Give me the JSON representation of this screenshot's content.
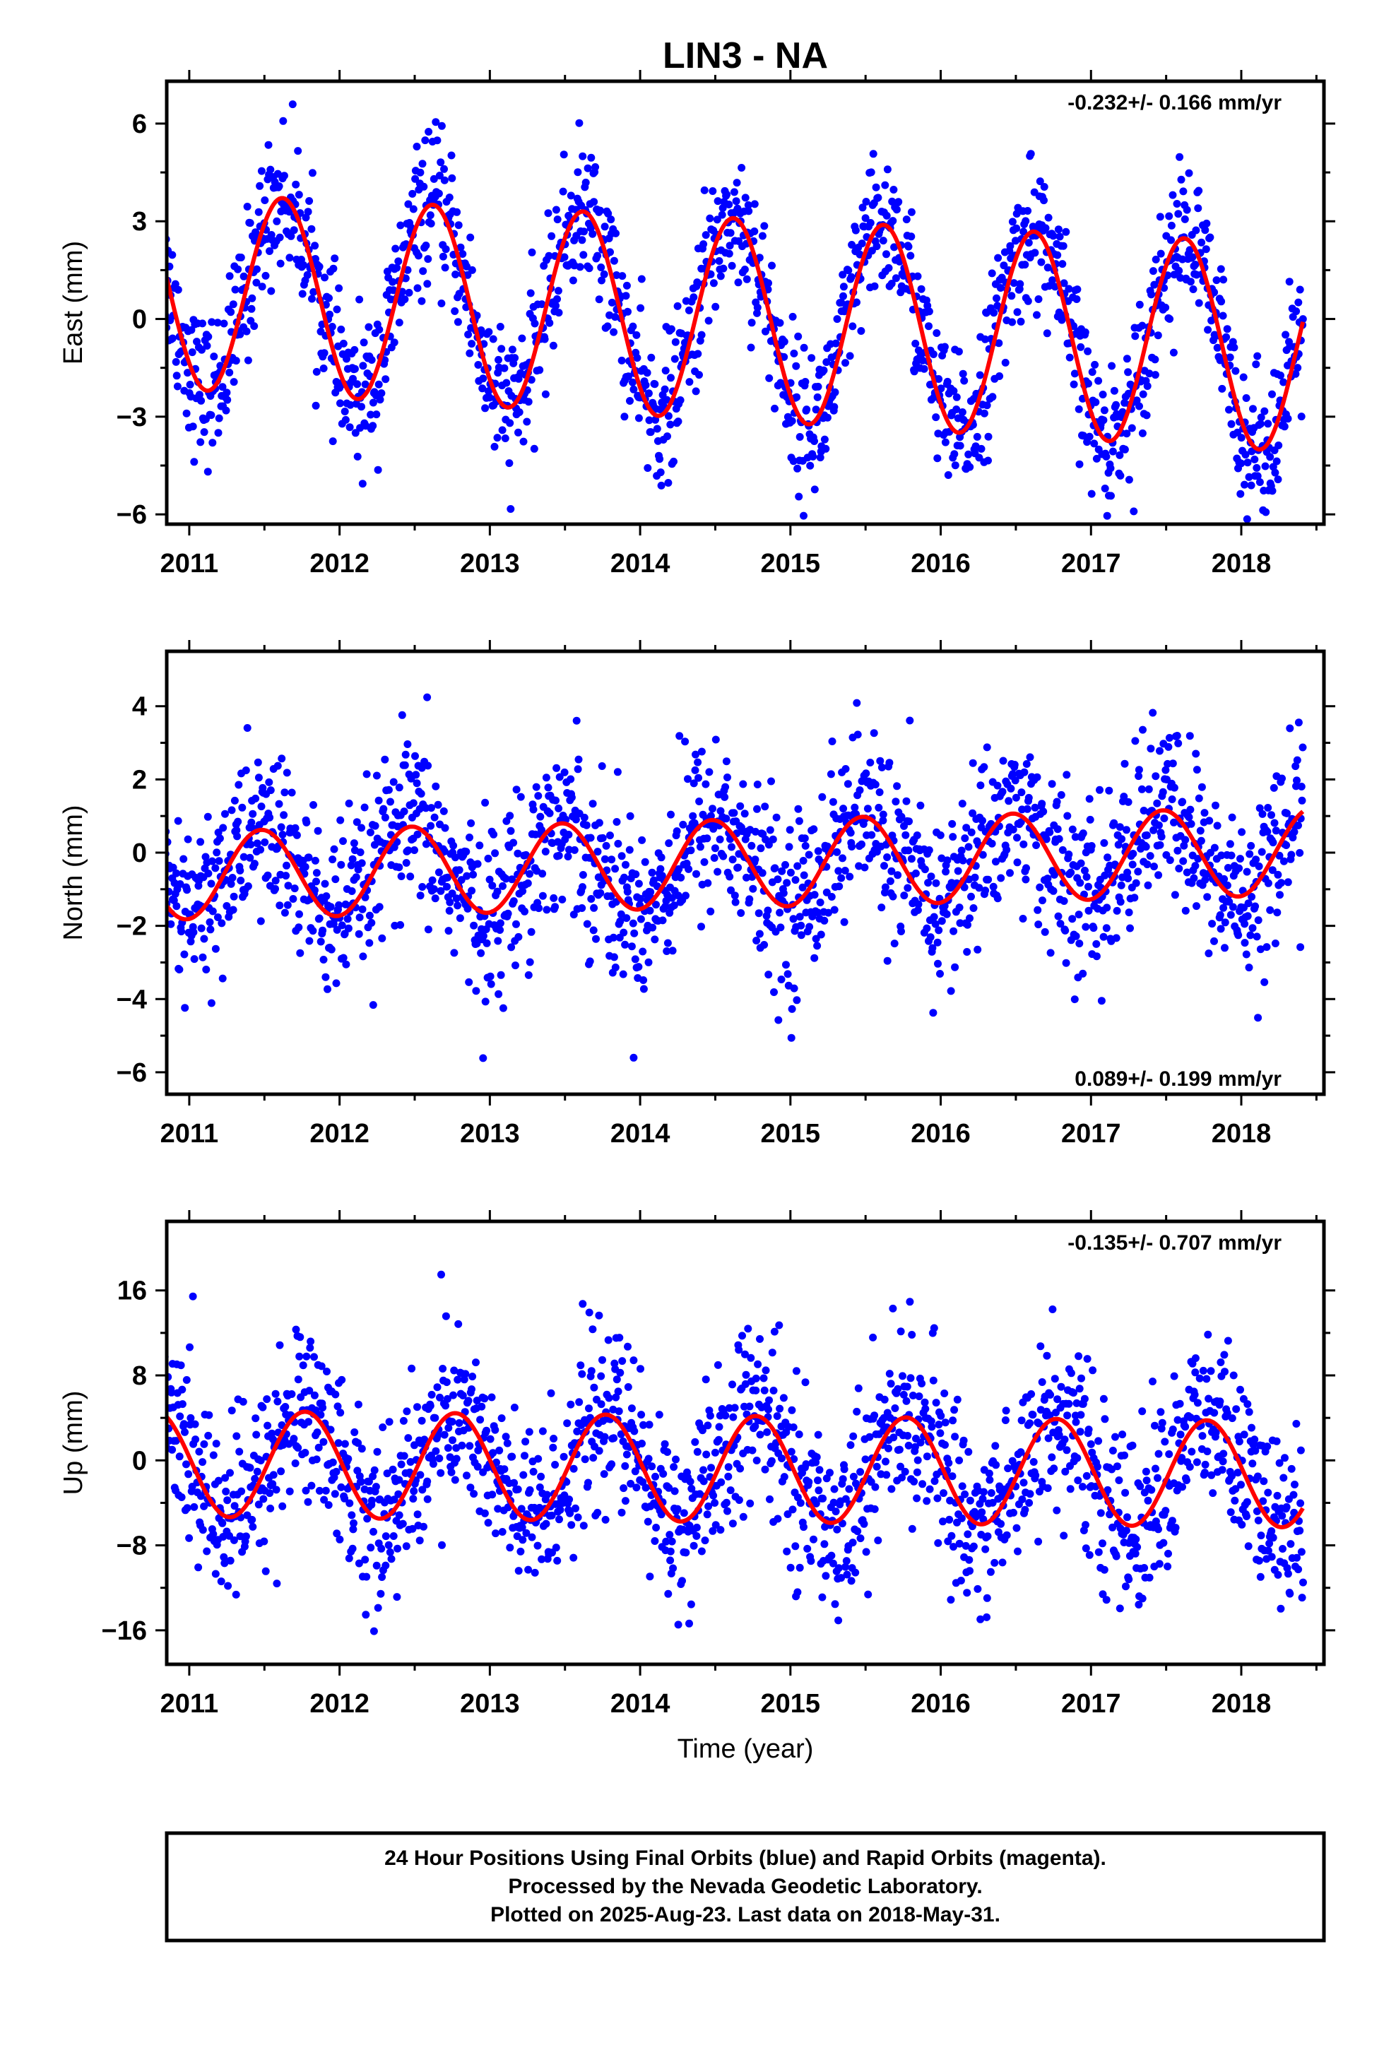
{
  "title": "LIN3 - NA",
  "colors": {
    "points": "#0000ff",
    "model": "#ff0000",
    "frame": "#000000"
  },
  "xlabel": "Time (year)",
  "footer": {
    "lines": [
      "24 Hour Positions Using Final Orbits (blue) and Rapid Orbits (magenta).",
      "Processed by the Nevada Geodetic Laboratory.",
      "Plotted on 2025-Aug-23. Last data on 2018-May-31."
    ]
  },
  "chart_data": [
    {
      "type": "scatter",
      "name": "east",
      "ylabel": "East (mm)",
      "rate_label": "-0.232+/- 0.166 mm/yr",
      "rate_position": "top-right",
      "xlim": [
        2010.85,
        2018.55
      ],
      "ylim": [
        -6.3,
        7.3
      ],
      "xticks": [
        2011,
        2012,
        2013,
        2014,
        2015,
        2016,
        2017,
        2018
      ],
      "yticks": [
        -6,
        -3,
        0,
        3,
        6
      ],
      "data_range": [
        2010.8,
        2018.41
      ],
      "model": {
        "description_values": "annual cosine fit",
        "offset": 0.0,
        "rate_mm_per_yr": -0.232,
        "amplitude_start": 3.0,
        "amplitude_end": 3.2,
        "peak_phase": 0.62
      },
      "scatter_noise_mm": 1.1
    },
    {
      "type": "scatter",
      "name": "north",
      "ylabel": "North (mm)",
      "rate_label": "0.089+/- 0.199 mm/yr",
      "rate_position": "bottom-right",
      "xlim": [
        2010.85,
        2018.55
      ],
      "ylim": [
        -6.6,
        5.5
      ],
      "xticks": [
        2011,
        2012,
        2013,
        2014,
        2015,
        2016,
        2017,
        2018
      ],
      "yticks": [
        -6,
        -4,
        -2,
        0,
        2,
        4
      ],
      "data_range": [
        2010.8,
        2018.41
      ],
      "model": {
        "offset": -0.3,
        "rate_mm_per_yr": 0.089,
        "amplitude_start": 1.2,
        "amplitude_end": 1.2,
        "peak_phase": 0.48
      },
      "scatter_noise_mm": 1.2
    },
    {
      "type": "scatter",
      "name": "up",
      "ylabel": "Up (mm)",
      "rate_label": "-0.135+/- 0.707 mm/yr",
      "rate_position": "top-right",
      "xlim": [
        2010.85,
        2018.55
      ],
      "ylim": [
        -19.2,
        22.5
      ],
      "xticks": [
        2011,
        2012,
        2013,
        2014,
        2015,
        2016,
        2017,
        2018
      ],
      "yticks": [
        -16,
        -8,
        0,
        8,
        16
      ],
      "data_range": [
        2010.8,
        2018.41
      ],
      "model": {
        "offset": -0.8,
        "rate_mm_per_yr": -0.135,
        "amplitude_start": 5.0,
        "amplitude_end": 5.0,
        "peak_phase": 0.77
      },
      "scatter_noise_mm": 4.2
    }
  ]
}
